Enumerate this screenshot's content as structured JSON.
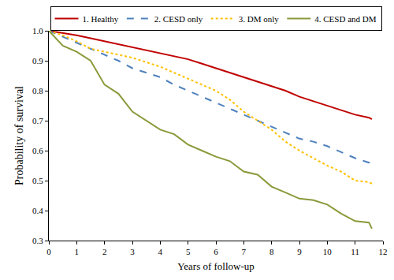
{
  "chart_data": {
    "type": "line",
    "x_label": "Years of follow-up",
    "y_label": "Probability of survival",
    "x": [
      0,
      0.5,
      1,
      1.5,
      2,
      2.5,
      3,
      3.5,
      4,
      4.5,
      5,
      5.5,
      6,
      6.5,
      7,
      7.5,
      8,
      8.5,
      9,
      9.5,
      10,
      10.5,
      11,
      11.5,
      11.6
    ],
    "series": [
      {
        "name": "1. Healthy",
        "color": "#c00000",
        "line_style": "solid",
        "values": [
          1,
          0.993,
          0.985,
          0.975,
          0.965,
          0.955,
          0.945,
          0.935,
          0.925,
          0.915,
          0.905,
          0.89,
          0.875,
          0.86,
          0.845,
          0.83,
          0.815,
          0.8,
          0.78,
          0.765,
          0.75,
          0.735,
          0.72,
          0.71,
          0.705
        ]
      },
      {
        "name": "2. CESD only",
        "color": "#4f81bd",
        "line_style": "dash",
        "values": [
          1,
          0.98,
          0.96,
          0.94,
          0.92,
          0.9,
          0.875,
          0.86,
          0.845,
          0.82,
          0.8,
          0.78,
          0.76,
          0.74,
          0.72,
          0.7,
          0.68,
          0.66,
          0.64,
          0.63,
          0.615,
          0.595,
          0.575,
          0.56,
          0.55
        ]
      },
      {
        "name": "3. DM only",
        "color": "#ffc000",
        "line_style": "dot",
        "values": [
          1,
          0.985,
          0.965,
          0.94,
          0.93,
          0.92,
          0.91,
          0.895,
          0.88,
          0.86,
          0.84,
          0.82,
          0.8,
          0.77,
          0.73,
          0.7,
          0.67,
          0.63,
          0.6,
          0.575,
          0.55,
          0.53,
          0.5,
          0.495,
          0.49
        ]
      },
      {
        "name": "4. CESD and DM",
        "color": "#8a9a3a",
        "line_style": "solid",
        "values": [
          1,
          0.95,
          0.93,
          0.9,
          0.82,
          0.79,
          0.73,
          0.7,
          0.67,
          0.655,
          0.62,
          0.6,
          0.58,
          0.565,
          0.53,
          0.52,
          0.48,
          0.46,
          0.44,
          0.435,
          0.42,
          0.39,
          0.365,
          0.36,
          0.34
        ]
      }
    ],
    "xlim": [
      0,
      12
    ],
    "xticks": [
      0,
      1,
      2,
      3,
      4,
      5,
      6,
      7,
      8,
      9,
      10,
      11,
      12
    ],
    "ylim": [
      0.3,
      1
    ],
    "yticks": [
      0.3,
      0.4,
      0.5,
      0.6,
      0.7,
      0.8,
      0.9,
      {
        "value": 1,
        "label": "1.0"
      }
    ],
    "legend": "top",
    "grid": false
  }
}
